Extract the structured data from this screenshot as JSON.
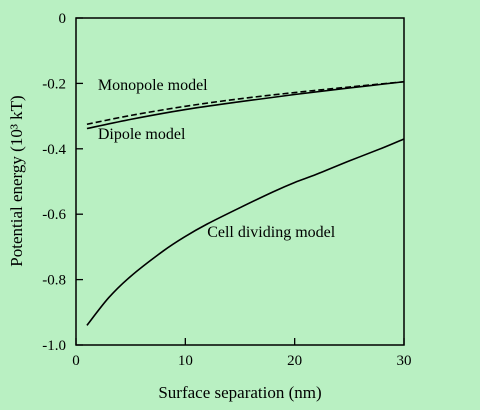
{
  "colors": {
    "background": "#b9f0c2",
    "ink": "#000000"
  },
  "chart_data": {
    "type": "line",
    "title": "",
    "xlabel": "Surface separation (nm)",
    "ylabel": "Potential energy (10³ kT)",
    "xlim": [
      0,
      30
    ],
    "ylim": [
      -1.0,
      0
    ],
    "xticks": [
      0,
      10,
      20,
      30
    ],
    "xtick_labels": [
      "0",
      "10",
      "20",
      "30"
    ],
    "yticks": [
      0,
      -0.2,
      -0.4,
      -0.6,
      -0.8,
      -1.0
    ],
    "ytick_labels": [
      "0",
      "-0.2",
      "-0.4",
      "-0.6",
      "-0.8",
      "-1.0"
    ],
    "grid": false,
    "legend": "none",
    "series": [
      {
        "name": "Monopole model",
        "style": "dashed",
        "x": [
          1,
          5,
          10,
          15,
          20,
          25,
          30
        ],
        "y": [
          -0.325,
          -0.298,
          -0.27,
          -0.247,
          -0.228,
          -0.211,
          -0.195
        ]
      },
      {
        "name": "Dipole model",
        "style": "solid",
        "x": [
          1,
          5,
          10,
          15,
          20,
          25,
          30
        ],
        "y": [
          -0.338,
          -0.31,
          -0.28,
          -0.256,
          -0.234,
          -0.214,
          -0.195
        ]
      },
      {
        "name": "Cell dividing model",
        "style": "solid",
        "x": [
          1,
          3,
          5,
          8,
          10,
          12,
          15,
          18,
          20,
          22,
          25,
          28,
          30
        ],
        "y": [
          -0.94,
          -0.855,
          -0.79,
          -0.712,
          -0.668,
          -0.63,
          -0.58,
          -0.532,
          -0.503,
          -0.478,
          -0.437,
          -0.398,
          -0.37
        ]
      }
    ],
    "annotations": [
      {
        "text": "Monopole model",
        "x": 2,
        "y": -0.22
      },
      {
        "text": "Dipole model",
        "x": 2,
        "y": -0.37
      },
      {
        "text": "Cell dividing model",
        "x": 12,
        "y": -0.67
      }
    ]
  }
}
